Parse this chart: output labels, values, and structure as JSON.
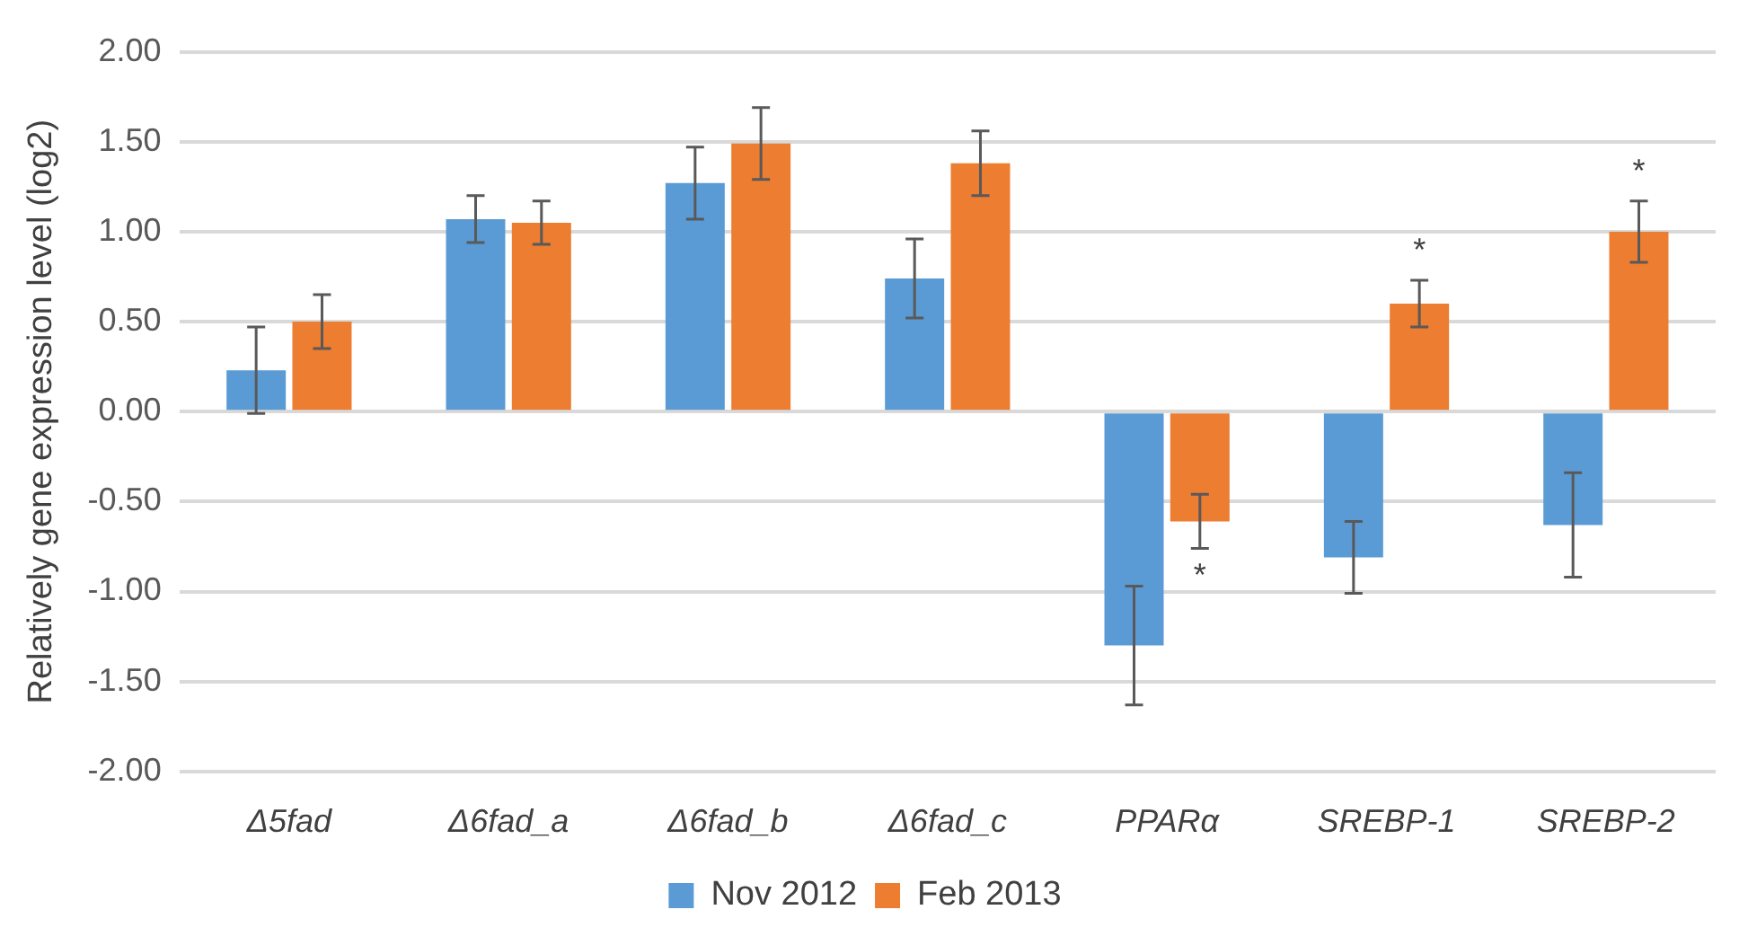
{
  "chart_data": {
    "type": "bar",
    "ylabel": "Relatively gene expression level (log2)",
    "categories": [
      "Δ5fad",
      "Δ6fad_a",
      "Δ6fad_b",
      "Δ6fad_c",
      "PPARα",
      "SREBP-1",
      "SREBP-2"
    ],
    "series": [
      {
        "name": "Nov 2012",
        "color": "#5b9bd5",
        "values": [
          0.23,
          1.07,
          1.27,
          0.74,
          -1.3,
          -0.81,
          -0.63
        ],
        "errors": [
          0.24,
          0.13,
          0.2,
          0.22,
          0.33,
          0.2,
          0.29
        ]
      },
      {
        "name": "Feb 2013",
        "color": "#ed7d31",
        "values": [
          0.5,
          1.05,
          1.49,
          1.38,
          -0.61,
          0.6,
          1.0
        ],
        "errors": [
          0.15,
          0.12,
          0.2,
          0.18,
          0.15,
          0.13,
          0.17
        ]
      }
    ],
    "ylim": [
      -2,
      2
    ],
    "yticks": [
      {
        "value": -2,
        "label": "-2.00"
      },
      {
        "value": -1.5,
        "label": "-1.50"
      },
      {
        "value": -1,
        "label": "-1.00"
      },
      {
        "value": -0.5,
        "label": "-0.50"
      },
      {
        "value": 0,
        "label": "0.00"
      },
      {
        "value": 0.5,
        "label": "0.50"
      },
      {
        "value": 1,
        "label": "1.00"
      },
      {
        "value": 1.5,
        "label": "1.50"
      },
      {
        "value": 2,
        "label": "2.00"
      }
    ],
    "grid": "y",
    "legend": "bottom",
    "annotations": [
      {
        "text": "*",
        "x": "PPARα",
        "y": -0.61
      },
      {
        "text": "*",
        "x": "SREBP-1",
        "y": 0.6
      },
      {
        "text": "*",
        "x": "SREBP-2",
        "y": 1.0
      }
    ]
  }
}
